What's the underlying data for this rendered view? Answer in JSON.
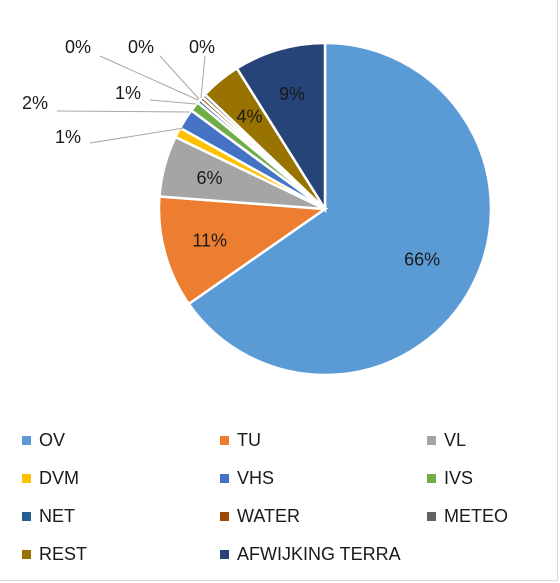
{
  "chart_data": {
    "type": "pie",
    "title": "",
    "categories": [
      "OV",
      "TU",
      "VL",
      "DVM",
      "VHS",
      "IVS",
      "NET",
      "WATER",
      "METEO",
      "REST",
      "AFWIJKING TERRA"
    ],
    "values": [
      66,
      11,
      6,
      1,
      2,
      1,
      0,
      0,
      0,
      4,
      9
    ],
    "labels": [
      "66%",
      "11%",
      "6%",
      "1%",
      "2%",
      "1%",
      "0%",
      "0%",
      "0%",
      "4%",
      "9%"
    ],
    "colors": [
      "#5b9bd5",
      "#ed7d31",
      "#a5a5a5",
      "#ffc000",
      "#4472c4",
      "#70ad47",
      "#255e91",
      "#9e480e",
      "#636363",
      "#997300",
      "#264478"
    ],
    "legend_position": "bottom"
  }
}
